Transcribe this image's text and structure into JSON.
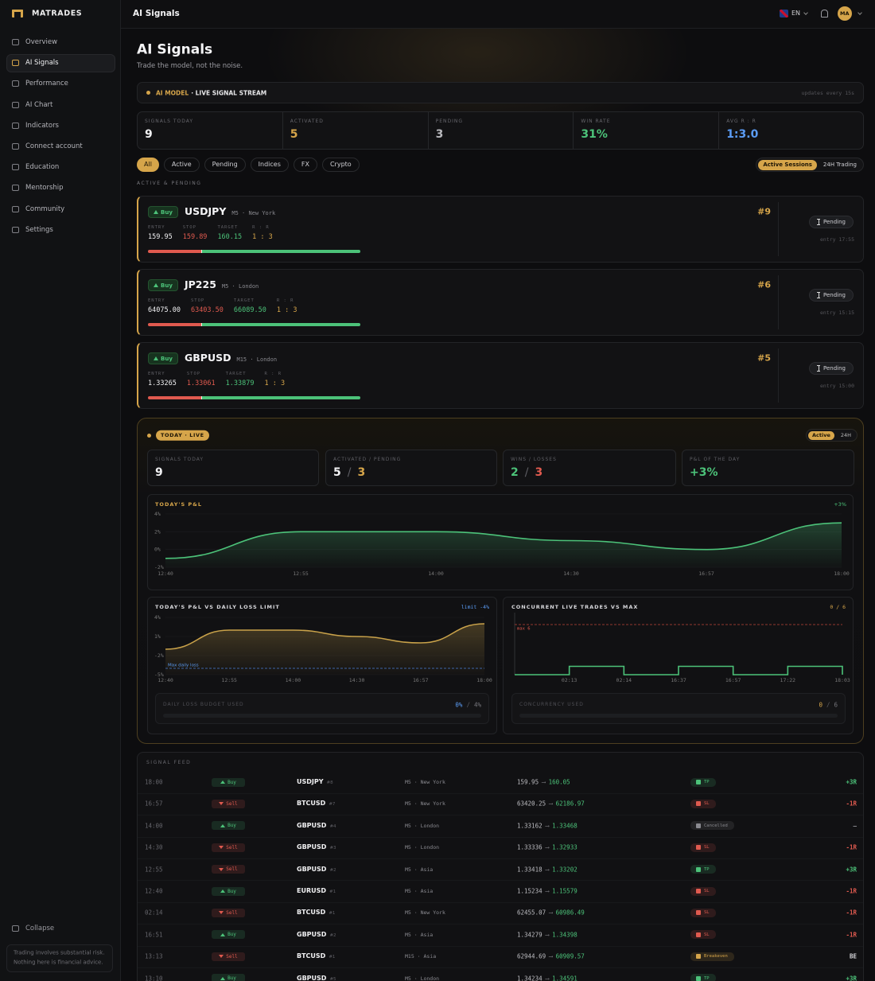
{
  "sidebar": {
    "brand": "MATRADES",
    "nav": [
      "Overview",
      "AI Signals",
      "Performance",
      "AI Chart",
      "Indicators",
      "Connect account",
      "Education",
      "Mentorship",
      "Community",
      "Settings"
    ],
    "collapse": "Collapse",
    "disclaimer": [
      "Trading involves substantial risk.",
      "Nothing here is financial advice."
    ]
  },
  "topbar": {
    "title": "AI Signals",
    "language": "EN",
    "avatar": "MA"
  },
  "header": {
    "title": "AI Signals",
    "subtitle": "Trade the model, not the noise."
  },
  "banner": {
    "model": "AI MODEL",
    "stream": "· LIVE SIGNAL STREAM",
    "updates": "updates every 15s"
  },
  "separator": "/",
  "stats": [
    {
      "label": "SIGNALS TODAY",
      "value": "9",
      "color": "#f2f2f4"
    },
    {
      "label": "ACTIVATED",
      "value": "5",
      "color": "#d6a54a"
    },
    {
      "label": "PENDING",
      "value": "3",
      "color": "#b9b9be"
    },
    {
      "label": "WIN RATE",
      "value": "31%",
      "color": "#4cc279"
    },
    {
      "label": "AVG R : R",
      "value": "1:3.0",
      "color": "#5b9cf5"
    }
  ],
  "filters": {
    "types": [
      "All",
      "Active",
      "Pending",
      "Indices",
      "FX",
      "Crypto"
    ],
    "sessions": [
      "Active Sessions",
      "24H Trading"
    ]
  },
  "section_label": "ACTIVE & PENDING",
  "signal_labels": {
    "entry": "ENTRY",
    "stop": "STOP",
    "target": "TARGET",
    "rr": "R : R"
  },
  "signals": [
    {
      "side": "Buy",
      "symbol": "USDJPY",
      "meta": "M5 · New York",
      "entry": "159.95",
      "stop": "159.89",
      "target": "160.15",
      "rr": "1 : 3",
      "id": "#9",
      "status": "Pending",
      "time": "entry 17:55"
    },
    {
      "side": "Buy",
      "symbol": "JP225",
      "meta": "M5 · London",
      "entry": "64075.00",
      "stop": "63403.50",
      "target": "66089.50",
      "rr": "1 : 3",
      "id": "#6",
      "status": "Pending",
      "time": "entry 15:15"
    },
    {
      "side": "Buy",
      "symbol": "GBPUSD",
      "meta": "M15 · London",
      "entry": "1.33265",
      "stop": "1.33061",
      "target": "1.33879",
      "rr": "1 : 3",
      "id": "#5",
      "status": "Pending",
      "time": "entry 15:00"
    }
  ],
  "live": {
    "badge": "TODAY · LIVE",
    "toggle": [
      "Active",
      "24H"
    ],
    "stats": [
      {
        "label": "SIGNALS TODAY",
        "values": [
          "9"
        ],
        "colors": [
          "#f2f2f4"
        ]
      },
      {
        "label": "ACTIVATED / PENDING",
        "values": [
          "5",
          "3"
        ],
        "colors": [
          "#f2f2f4",
          "#d6a54a"
        ]
      },
      {
        "label": "WINS / LOSSES",
        "values": [
          "2",
          "3"
        ],
        "colors": [
          "#4cc279",
          "#e05a4f"
        ]
      },
      {
        "label": "P&L OF THE DAY",
        "values": [
          "+3%"
        ],
        "colors": [
          "#4cc279"
        ]
      }
    ]
  },
  "pnl_chart": {
    "type": "line",
    "title": "TODAY'S P&L",
    "badge": "+3%",
    "categories": [
      "12:40",
      "12:55",
      "14:00",
      "14:30",
      "16:57",
      "18:00"
    ],
    "values": [
      -1,
      2,
      2,
      1,
      0,
      3
    ],
    "color": "#4cc279",
    "ylim": [
      -2,
      4
    ],
    "yticks": [
      {
        "value": 4,
        "label": "4%"
      },
      {
        "value": 2,
        "label": "2%"
      },
      {
        "value": 0,
        "label": "0%"
      },
      {
        "value": -2,
        "label": "-2%"
      }
    ]
  },
  "limit_chart": {
    "type": "line",
    "title": "TODAY'S P&L VS DAILY LOSS LIMIT",
    "badge": "limit -4%",
    "categories": [
      "12:40",
      "12:55",
      "14:00",
      "14:30",
      "16:57",
      "18:00"
    ],
    "values": [
      -1,
      2,
      2,
      1,
      0,
      3
    ],
    "color": "#c9a24a",
    "ylim": [
      -5,
      4
    ],
    "yticks": [
      {
        "value": 4,
        "label": "4%"
      },
      {
        "value": 1,
        "label": "1%"
      },
      {
        "value": -2,
        "label": "-2%"
      },
      {
        "value": -5,
        "label": "-5%"
      }
    ],
    "limit": {
      "label": "Max daily loss",
      "value": -4
    },
    "budget": {
      "label": "DAILY LOSS BUDGET USED",
      "used": "0%",
      "max": "4%"
    }
  },
  "concurrency_chart": {
    "type": "step",
    "title": "CONCURRENT LIVE TRADES VS MAX",
    "badge": "0 / 6",
    "categories": [
      null,
      "02:13",
      "02:14",
      "16:37",
      "16:57",
      "17:22",
      "18:03"
    ],
    "values": [
      0,
      1,
      0,
      1,
      0,
      1,
      0
    ],
    "color": "#4cc279",
    "ylim": [
      0,
      6
    ],
    "max": {
      "label": "max 6",
      "value": 6
    },
    "usage": {
      "label": "CONCURRENCY USED",
      "used": "0",
      "max": "6"
    }
  },
  "feed": {
    "title": "SIGNAL FEED",
    "arrow": "⟶",
    "rows": [
      {
        "time": "18:00",
        "side": "Buy",
        "symbol": "USDJPY",
        "id": "#8",
        "market": "M5 · New York",
        "from": "159.95",
        "to": "160.05",
        "status": "TP",
        "result": "+3R",
        "side_color": "#4cc279",
        "status_color": "#4cc279",
        "result_color": "#4cc279"
      },
      {
        "time": "16:57",
        "side": "Sell",
        "symbol": "BTCUSD",
        "id": "#7",
        "market": "M5 · New York",
        "from": "63420.25",
        "to": "62186.97",
        "status": "SL",
        "result": "-1R",
        "side_color": "#e05a4f",
        "status_color": "#e05a4f",
        "result_color": "#e05a4f"
      },
      {
        "time": "14:00",
        "side": "Buy",
        "symbol": "GBPUSD",
        "id": "#4",
        "market": "M5 · London",
        "from": "1.33162",
        "to": "1.33468",
        "status": "Cancelled",
        "result": "—",
        "side_color": "#4cc279",
        "status_color": "#8a8a90",
        "result_color": "#8a8a90"
      },
      {
        "time": "14:30",
        "side": "Sell",
        "symbol": "GBPUSD",
        "id": "#3",
        "market": "M5 · London",
        "from": "1.33336",
        "to": "1.32933",
        "status": "SL",
        "result": "-1R",
        "side_color": "#e05a4f",
        "status_color": "#e05a4f",
        "result_color": "#e05a4f"
      },
      {
        "time": "12:55",
        "side": "Sell",
        "symbol": "GBPUSD",
        "id": "#2",
        "market": "M5 · Asia",
        "from": "1.33418",
        "to": "1.33202",
        "status": "TP",
        "result": "+3R",
        "side_color": "#e05a4f",
        "status_color": "#4cc279",
        "result_color": "#4cc279"
      },
      {
        "time": "12:40",
        "side": "Buy",
        "symbol": "EURUSD",
        "id": "#1",
        "market": "M5 · Asia",
        "from": "1.15234",
        "to": "1.15579",
        "status": "SL",
        "result": "-1R",
        "side_color": "#4cc279",
        "status_color": "#e05a4f",
        "result_color": "#e05a4f"
      },
      {
        "time": "02:14",
        "side": "Sell",
        "symbol": "BTCUSD",
        "id": "#1",
        "market": "M5 · New York",
        "from": "62455.07",
        "to": "60986.49",
        "status": "SL",
        "result": "-1R",
        "side_color": "#e05a4f",
        "status_color": "#e05a4f",
        "result_color": "#e05a4f"
      },
      {
        "time": "16:51",
        "side": "Buy",
        "symbol": "GBPUSD",
        "id": "#2",
        "market": "M5 · Asia",
        "from": "1.34279",
        "to": "1.34398",
        "status": "SL",
        "result": "-1R",
        "side_color": "#4cc279",
        "status_color": "#e05a4f",
        "result_color": "#e05a4f"
      },
      {
        "time": "13:13",
        "side": "Sell",
        "symbol": "BTCUSD",
        "id": "#1",
        "market": "M15 · Asia",
        "from": "62944.69",
        "to": "60909.57",
        "status": "Breakeven",
        "result": "BE",
        "side_color": "#e05a4f",
        "status_color": "#d6a54a",
        "result_color": "#d8d8dc"
      },
      {
        "time": "13:10",
        "side": "Buy",
        "symbol": "GBPUSD",
        "id": "#5",
        "market": "M5 · London",
        "from": "1.34234",
        "to": "1.34591",
        "status": "TP",
        "result": "+3R",
        "side_color": "#4cc279",
        "status_color": "#4cc279",
        "result_color": "#4cc279"
      }
    ]
  }
}
